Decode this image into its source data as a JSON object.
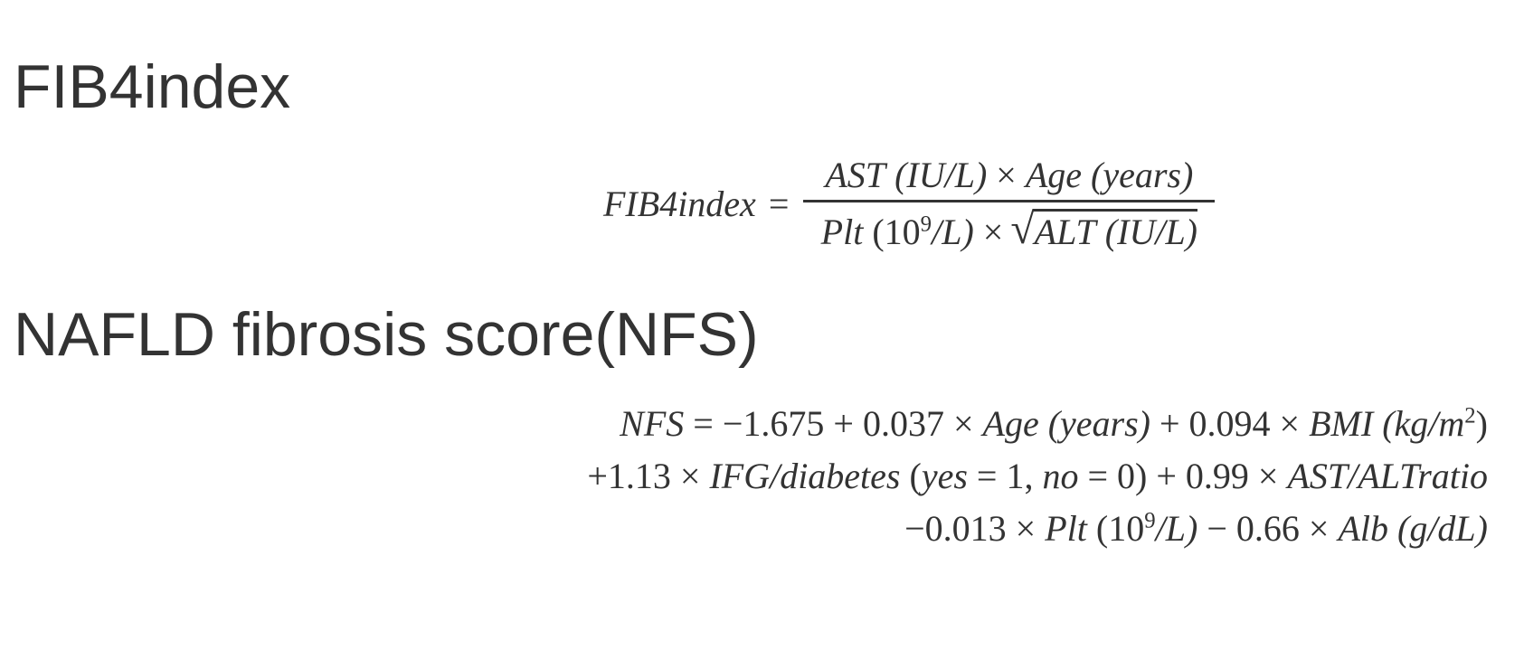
{
  "sections": {
    "fib4": {
      "heading": "FIB4index",
      "equation": {
        "lhs": "FIB4index",
        "equals": "=",
        "numerator": {
          "ast": "AST",
          "ast_unit": "(IU/L)",
          "times": "×",
          "age": "Age",
          "age_unit": "(years)"
        },
        "denominator": {
          "plt": "Plt",
          "plt_unit_open": "(10",
          "plt_unit_exp": "9",
          "plt_unit_close": "/L)",
          "times": "×",
          "sqrt_symbol": "√",
          "alt": "ALT",
          "alt_unit": "(IU/L)"
        }
      }
    },
    "nfs": {
      "heading": "NAFLD fibrosis score(NFS)",
      "equation": {
        "line1": {
          "lhs": "NFS",
          "rest": "= −1.675 + 0.037 × ",
          "age": "Age",
          "age_unit": " (years)",
          "mid": " + 0.094 × ",
          "bmi": "BMI",
          "bmi_unit_open": " (kg/m",
          "bmi_unit_exp": "2",
          "bmi_unit_close": ")"
        },
        "line2": {
          "prefix": "+1.13 × ",
          "ifg": "IFG/diabetes",
          "ifg_open": " (",
          "yes": "yes",
          "yes_val": " = 1, ",
          "no": "no",
          "no_val": " = 0)",
          "mid": " + 0.99 × ",
          "ratio": "AST/ALTratio"
        },
        "line3": {
          "prefix": "−0.013 × ",
          "plt": "Plt",
          "plt_unit_open": " (10",
          "plt_unit_exp": "9",
          "plt_unit_close": "/L)",
          "mid": " − 0.66 × ",
          "alb": "Alb",
          "alb_unit": " (g/dL)"
        }
      }
    }
  }
}
